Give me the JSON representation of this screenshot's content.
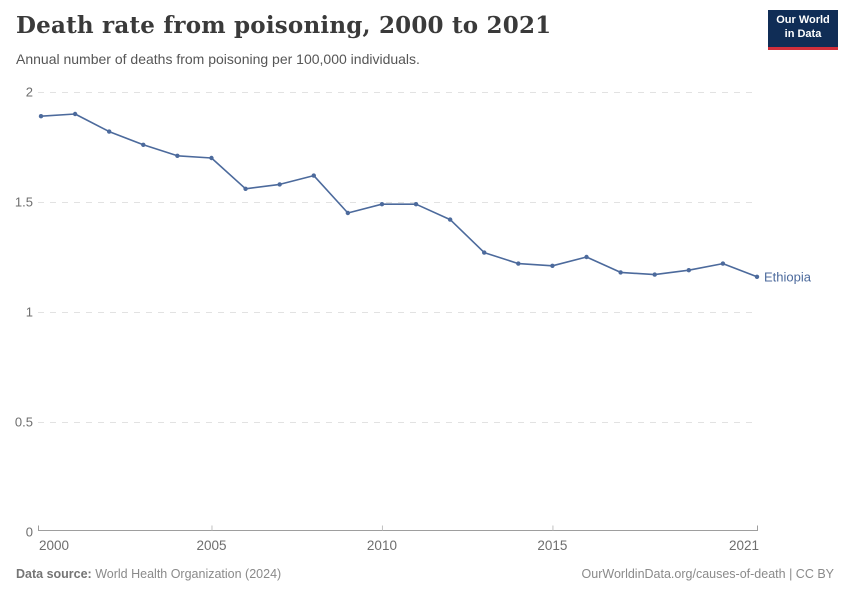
{
  "header": {
    "title": "Death rate from poisoning, 2000 to 2021",
    "subtitle": "Annual number of deaths from poisoning per 100,000 individuals.",
    "logo": {
      "line1": "Our World",
      "line2": "in Data",
      "bg_color": "#102d56",
      "accent_color": "#d12f3b"
    }
  },
  "chart_data": {
    "type": "line",
    "title": "Death rate from poisoning, 2000 to 2021",
    "x": [
      2000,
      2001,
      2002,
      2003,
      2004,
      2005,
      2006,
      2007,
      2008,
      2009,
      2010,
      2011,
      2012,
      2013,
      2014,
      2015,
      2016,
      2017,
      2018,
      2019,
      2020,
      2021
    ],
    "series": [
      {
        "name": "Ethiopia",
        "color": "#4c6a9c",
        "values": [
          1.89,
          1.9,
          1.82,
          1.76,
          1.71,
          1.7,
          1.56,
          1.58,
          1.62,
          1.45,
          1.49,
          1.49,
          1.42,
          1.27,
          1.22,
          1.21,
          1.25,
          1.18,
          1.17,
          1.19,
          1.22,
          1.16
        ]
      }
    ],
    "xlabel": "",
    "ylabel": "",
    "xlim": [
      2000,
      2021
    ],
    "ylim": [
      0,
      2
    ],
    "xticks": [
      2000,
      2005,
      2010,
      2015,
      2021
    ],
    "yticks": [
      0,
      0.5,
      1,
      1.5,
      2
    ],
    "grid": "horizontal-dashed",
    "legend_position": "end-of-line-label",
    "grid_color": "#e2e2e2",
    "axis_color": "#9e9e9e",
    "tick_label_color": "#6e6e6e"
  },
  "footer": {
    "source_label": "Data source:",
    "source": "World Health Organization (2024)",
    "url": "OurWorldinData.org/causes-of-death",
    "separator": " | ",
    "license": "CC BY"
  }
}
